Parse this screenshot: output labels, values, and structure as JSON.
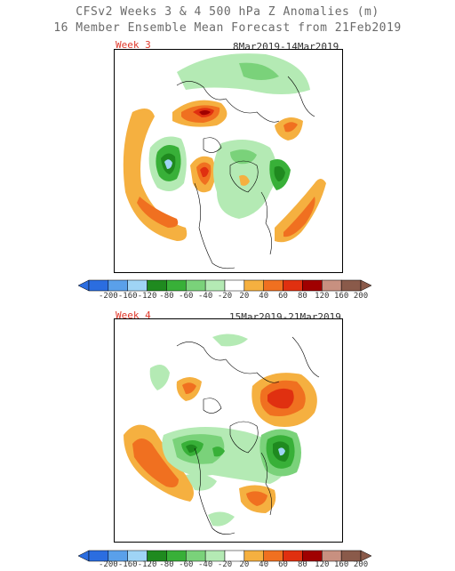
{
  "title_line1": "CFSv2 Weeks 3 & 4 500 hPa Z Anomalies (m)",
  "title_line2": "16 Member Ensemble Mean Forecast from 21Feb2019",
  "panels": [
    {
      "week": "Week 3",
      "dates": "8Mar2019-14Mar2019"
    },
    {
      "week": "Week 4",
      "dates": "15Mar2019-21Mar2019"
    }
  ],
  "colorbar": {
    "labels": [
      "-200",
      "-160",
      "-120",
      "-80",
      "-60",
      "-40",
      "-20",
      "20",
      "40",
      "60",
      "80",
      "120",
      "160",
      "200"
    ],
    "colors": [
      "#2b6de0",
      "#5aa0ea",
      "#9fd4f5",
      "#1f8a1f",
      "#38b038",
      "#7ad27a",
      "#b4eab4",
      "#ffffff",
      "#f5b040",
      "#f07020",
      "#e03010",
      "#a00000",
      "#c89080",
      "#8a5a4a"
    ]
  }
}
